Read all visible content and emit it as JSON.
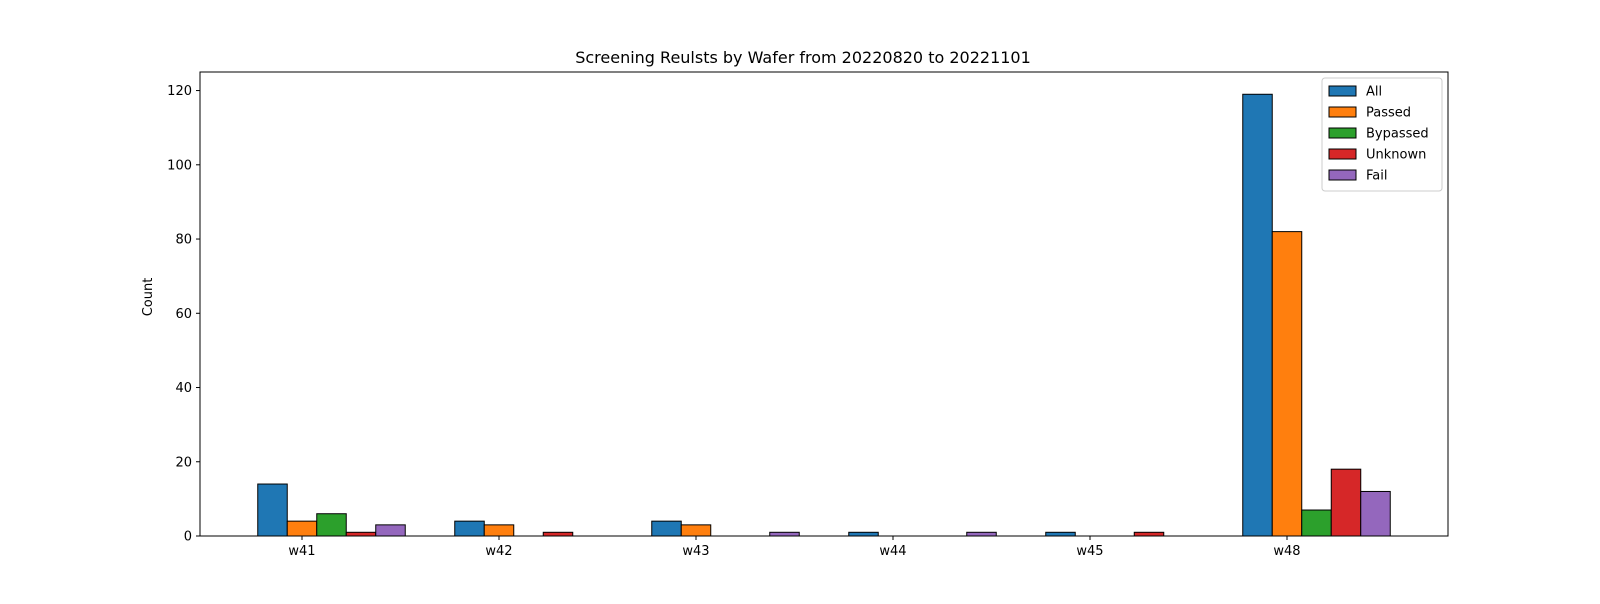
{
  "chart_data": {
    "type": "bar",
    "title": "Screening Reulsts by Wafer from 20220820 to 20221101",
    "xlabel": "",
    "ylabel": "Count",
    "categories": [
      "w41",
      "w42",
      "w43",
      "w44",
      "w45",
      "w48"
    ],
    "series": [
      {
        "name": "All",
        "color": "#1f77b4",
        "values": [
          14,
          4,
          4,
          1,
          1,
          119
        ]
      },
      {
        "name": "Passed",
        "color": "#ff7f0e",
        "values": [
          4,
          3,
          3,
          0,
          0,
          82
        ]
      },
      {
        "name": "Bypassed",
        "color": "#2ca02c",
        "values": [
          6,
          0,
          0,
          0,
          0,
          7
        ]
      },
      {
        "name": "Unknown",
        "color": "#d62728",
        "values": [
          1,
          1,
          0,
          0,
          1,
          18
        ]
      },
      {
        "name": "Fail",
        "color": "#9467bd",
        "values": [
          3,
          0,
          1,
          1,
          0,
          12
        ]
      }
    ],
    "ylim": [
      0,
      125
    ],
    "yticks": [
      0,
      20,
      40,
      60,
      80,
      100,
      120
    ],
    "grid": false,
    "legend_position": "top-right"
  }
}
